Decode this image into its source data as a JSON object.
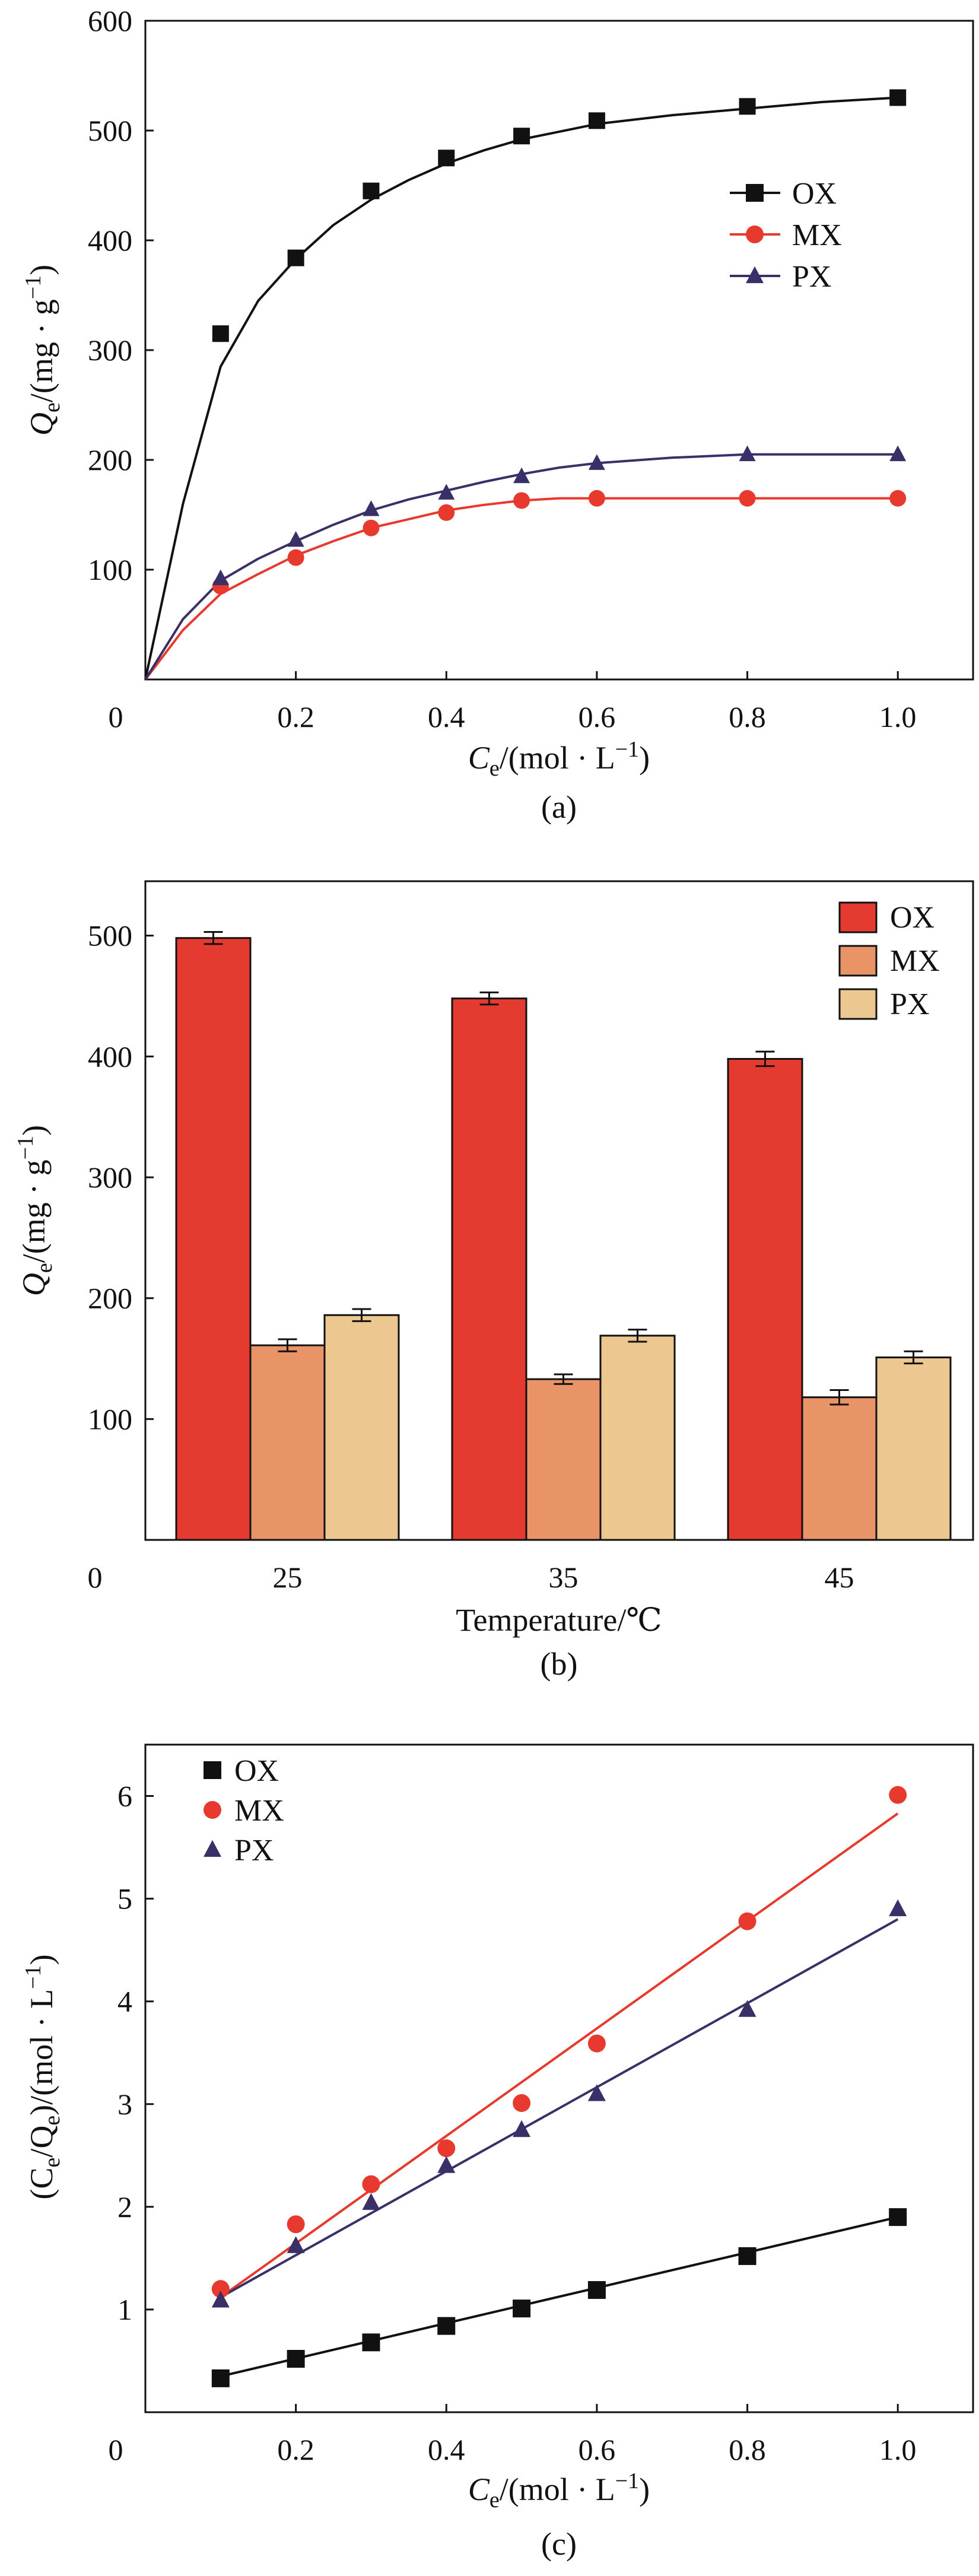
{
  "colors": {
    "OX_line": "#111111",
    "MX_line": "#e8392e",
    "PX_line": "#3a2f66",
    "OX_bar": "#e53a30",
    "MX_bar": "#e99466",
    "PX_bar": "#ecc78f"
  },
  "chart_data": [
    {
      "type": "line",
      "panel_label": "(a)",
      "xlabel_main": "C",
      "xlabel_sub": "e",
      "xlabel_unit": "/(mol · L",
      "xlabel_sup": "−1",
      "xlabel_close": ")",
      "ylabel_main": "Q",
      "ylabel_sub": "e",
      "ylabel_unit": "/(mg · g",
      "ylabel_sup": "−1",
      "ylabel_close": ")",
      "origin_label": "0",
      "xlim": [
        0,
        1.1
      ],
      "ylim": [
        0,
        600
      ],
      "x_ticks": [
        0.2,
        0.4,
        0.6,
        0.8,
        1.0
      ],
      "x_tick_labels": [
        "0.2",
        "0.4",
        "0.6",
        "0.8",
        "1.0"
      ],
      "y_ticks": [
        100,
        200,
        300,
        400,
        500,
        600
      ],
      "y_tick_labels": [
        "100",
        "200",
        "300",
        "400",
        "500",
        "600"
      ],
      "legend_position": "right-middle",
      "series": [
        {
          "name": "OX",
          "marker": "square",
          "x": [
            0.1,
            0.2,
            0.3,
            0.4,
            0.5,
            0.6,
            0.8,
            1.0
          ],
          "values": [
            315,
            384,
            445,
            475,
            495,
            509,
            522,
            530
          ],
          "fit": [
            [
              0,
              0
            ],
            [
              0.05,
              160
            ],
            [
              0.1,
              285
            ],
            [
              0.15,
              345
            ],
            [
              0.2,
              383
            ],
            [
              0.25,
              414
            ],
            [
              0.3,
              437
            ],
            [
              0.35,
              455
            ],
            [
              0.4,
              470
            ],
            [
              0.45,
              482
            ],
            [
              0.5,
              492
            ],
            [
              0.55,
              499
            ],
            [
              0.6,
              506
            ],
            [
              0.7,
              514
            ],
            [
              0.8,
              520
            ],
            [
              0.9,
              526
            ],
            [
              1.0,
              530
            ]
          ]
        },
        {
          "name": "MX",
          "marker": "circle",
          "x": [
            0.1,
            0.2,
            0.3,
            0.4,
            0.5,
            0.6,
            0.8,
            1.0
          ],
          "values": [
            85,
            111,
            138,
            152,
            163,
            165,
            165,
            165
          ],
          "fit": [
            [
              0,
              0
            ],
            [
              0.05,
              45
            ],
            [
              0.1,
              78
            ],
            [
              0.15,
              96
            ],
            [
              0.2,
              113
            ],
            [
              0.25,
              126
            ],
            [
              0.3,
              138
            ],
            [
              0.35,
              146
            ],
            [
              0.4,
              154
            ],
            [
              0.45,
              159
            ],
            [
              0.5,
              163
            ],
            [
              0.55,
              165
            ],
            [
              0.6,
              165
            ],
            [
              0.7,
              165
            ],
            [
              0.8,
              165
            ],
            [
              0.9,
              165
            ],
            [
              1.0,
              165
            ]
          ]
        },
        {
          "name": "PX",
          "marker": "triangle",
          "x": [
            0.1,
            0.2,
            0.3,
            0.4,
            0.5,
            0.6,
            0.8,
            1.0
          ],
          "values": [
            92,
            127,
            155,
            170,
            185,
            197,
            205,
            205
          ],
          "fit": [
            [
              0,
              0
            ],
            [
              0.05,
              55
            ],
            [
              0.1,
              90
            ],
            [
              0.15,
              110
            ],
            [
              0.2,
              126
            ],
            [
              0.25,
              141
            ],
            [
              0.3,
              154
            ],
            [
              0.35,
              164
            ],
            [
              0.4,
              172
            ],
            [
              0.45,
              180
            ],
            [
              0.5,
              187
            ],
            [
              0.55,
              193
            ],
            [
              0.6,
              197
            ],
            [
              0.7,
              202
            ],
            [
              0.8,
              205
            ],
            [
              0.9,
              205
            ],
            [
              1.0,
              205
            ]
          ]
        }
      ]
    },
    {
      "type": "bar",
      "panel_label": "(b)",
      "xlabel": "Temperature/℃",
      "ylabel_main": "Q",
      "ylabel_sub": "e",
      "ylabel_unit": "/(mg · g",
      "ylabel_sup": "−1",
      "ylabel_close": ")",
      "origin_label": "0",
      "categories": [
        "25",
        "35",
        "45"
      ],
      "ylim": [
        0,
        545
      ],
      "y_ticks": [
        100,
        200,
        300,
        400,
        500
      ],
      "y_tick_labels": [
        "100",
        "200",
        "300",
        "400",
        "500"
      ],
      "legend_position": "top-right",
      "series": [
        {
          "name": "OX",
          "values": [
            498,
            448,
            398
          ],
          "errors": [
            5,
            5,
            6
          ]
        },
        {
          "name": "MX",
          "values": [
            161,
            133,
            118
          ],
          "errors": [
            5,
            4,
            6
          ]
        },
        {
          "name": "PX",
          "values": [
            186,
            169,
            151
          ],
          "errors": [
            5,
            5,
            5
          ]
        }
      ]
    },
    {
      "type": "scatter",
      "panel_label": "(c)",
      "xlabel_main": "C",
      "xlabel_sub": "e",
      "xlabel_unit": "/(mol · L",
      "xlabel_sup": "−1",
      "xlabel_close": ")",
      "ylabel_text": "(C",
      "ylabel_sub1": "e",
      "ylabel_mid": "/Q",
      "ylabel_sub2": "e",
      "ylabel_unit": ")/(mol · L",
      "ylabel_sup": "−1",
      "ylabel_close": ")",
      "origin_label": "0",
      "xlim": [
        0,
        1.1
      ],
      "ylim": [
        0,
        6.5
      ],
      "x_ticks": [
        0.2,
        0.4,
        0.6,
        0.8,
        1.0
      ],
      "x_tick_labels": [
        "0.2",
        "0.4",
        "0.6",
        "0.8",
        "1.0"
      ],
      "y_ticks": [
        1,
        2,
        3,
        4,
        5,
        6
      ],
      "y_tick_labels": [
        "1",
        "2",
        "3",
        "4",
        "5",
        "6"
      ],
      "legend_position": "top-left",
      "series": [
        {
          "name": "OX",
          "marker": "square",
          "x": [
            0.1,
            0.2,
            0.3,
            0.4,
            0.5,
            0.6,
            0.8,
            1.0
          ],
          "values": [
            0.33,
            0.52,
            0.68,
            0.84,
            1.01,
            1.19,
            1.52,
            1.9
          ],
          "fit": [
            [
              0.1,
              0.35
            ],
            [
              1.0,
              1.9
            ]
          ]
        },
        {
          "name": "MX",
          "marker": "circle",
          "x": [
            0.1,
            0.2,
            0.3,
            0.4,
            0.5,
            0.6,
            0.8,
            1.0
          ],
          "values": [
            1.2,
            1.83,
            2.22,
            2.57,
            3.01,
            3.59,
            4.78,
            6.01
          ],
          "fit": [
            [
              0.1,
              1.12
            ],
            [
              1.0,
              5.83
            ]
          ]
        },
        {
          "name": "PX",
          "marker": "triangle",
          "x": [
            0.1,
            0.2,
            0.3,
            0.4,
            0.5,
            0.6,
            0.8,
            1.0
          ],
          "values": [
            1.09,
            1.62,
            2.04,
            2.4,
            2.75,
            3.1,
            3.92,
            4.9
          ],
          "fit": [
            [
              0.1,
              1.12
            ],
            [
              1.0,
              4.8
            ]
          ]
        }
      ]
    }
  ]
}
